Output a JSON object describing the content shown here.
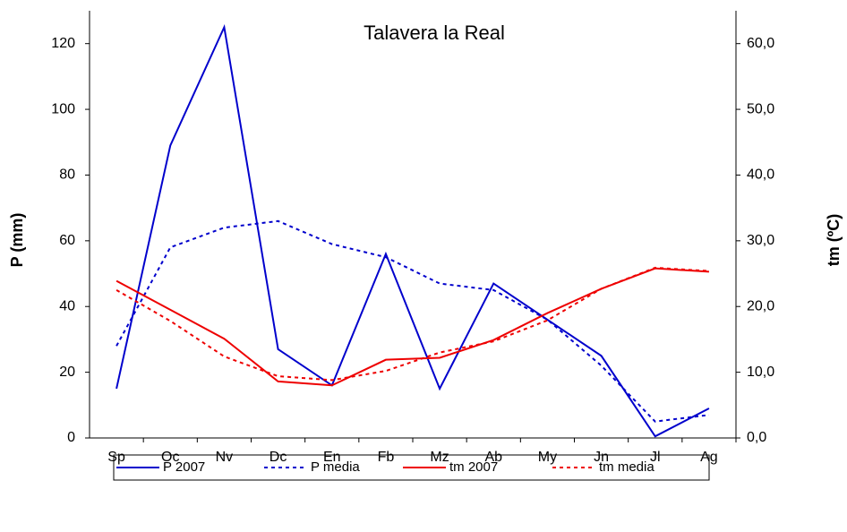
{
  "chart_data": {
    "type": "line",
    "title": "Talavera la Real",
    "y_label": "P (mm)",
    "y2_label": "tm (ºC)",
    "categories": [
      "Sp",
      "Oc",
      "Nv",
      "Dc",
      "En",
      "Fb",
      "Mz",
      "Ab",
      "My",
      "Jn",
      "Jl",
      "Ag"
    ],
    "ylim": [
      0,
      130
    ],
    "yticks": [
      0,
      20,
      40,
      60,
      80,
      100,
      120
    ],
    "y2lim": [
      0,
      65
    ],
    "y2ticks": [
      {
        "value": 0,
        "label": "0,0"
      },
      {
        "value": 10,
        "label": "10,0"
      },
      {
        "value": 20,
        "label": "20,0"
      },
      {
        "value": 30,
        "label": "30,0"
      },
      {
        "value": 40,
        "label": "40,0"
      },
      {
        "value": 50,
        "label": "50,0"
      },
      {
        "value": 60,
        "label": "60,0"
      }
    ],
    "legend": "bottom",
    "series": [
      {
        "name": "P 2007",
        "color": "#0000cc",
        "dash": false,
        "values": [
          15,
          89,
          125,
          27,
          16,
          56,
          15,
          47,
          36,
          25,
          0.5,
          9
        ]
      },
      {
        "name": "P media",
        "color": "#0000cc",
        "dash": true,
        "values": [
          28,
          58,
          64,
          66,
          59,
          55,
          47,
          45,
          36,
          22,
          5,
          7
        ]
      },
      {
        "name": "tm 2007",
        "color": "#ee0000",
        "dash": false,
        "axis": "y2",
        "values": [
          23.9,
          19.5,
          15.1,
          8.6,
          8.0,
          11.9,
          12.2,
          14.9,
          19.0,
          22.7,
          25.8,
          25.3
        ]
      },
      {
        "name": "tm media",
        "color": "#ee0000",
        "dash": true,
        "axis": "y2",
        "values": [
          22.5,
          17.8,
          12.4,
          9.4,
          8.8,
          10.2,
          13.0,
          14.7,
          17.9,
          22.7,
          25.9,
          25.4
        ]
      }
    ]
  }
}
